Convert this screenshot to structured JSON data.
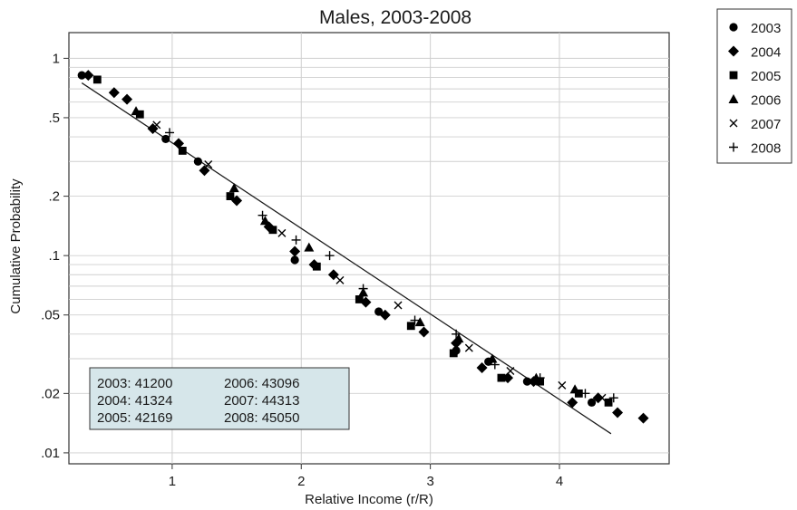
{
  "chart_data": {
    "type": "scatter",
    "title": "Males, 2003-2008",
    "xlabel": "Relative Income (r/R)",
    "ylabel": "Cumulative Probability",
    "x_scale": "linear",
    "y_scale": "log",
    "xlim": [
      0.2,
      4.85
    ],
    "ylim": [
      0.0088,
      1.35
    ],
    "x_ticks": [
      1,
      2,
      3,
      4
    ],
    "x_tick_labels": [
      "1",
      "2",
      "3",
      "4"
    ],
    "y_ticks": [
      1,
      0.5,
      0.2,
      0.1,
      0.05,
      0.02,
      0.01
    ],
    "y_tick_labels": [
      "1",
      ".5",
      ".2",
      ".1",
      ".05",
      ".02",
      ".01"
    ],
    "grid": true,
    "legend_position": "outside-right-top",
    "colors": {
      "markers": "#000000",
      "grid": "#cfcfcf",
      "note_box": "#d6e6ea",
      "fit_line": "#1a1a1a"
    },
    "fit_line": {
      "x": [
        0.3,
        4.4
      ],
      "y": [
        0.75,
        0.0125
      ]
    },
    "series": [
      {
        "name": "2003",
        "marker": "circle",
        "x": [
          0.3,
          0.95,
          1.2,
          1.95,
          2.6,
          3.2,
          3.45,
          3.75,
          4.25
        ],
        "y": [
          0.82,
          0.39,
          0.3,
          0.095,
          0.052,
          0.033,
          0.029,
          0.023,
          0.018
        ]
      },
      {
        "name": "2004",
        "marker": "diamond",
        "x": [
          0.35,
          0.55,
          0.65,
          0.85,
          1.05,
          1.25,
          1.5,
          1.75,
          1.95,
          2.1,
          2.25,
          2.5,
          2.65,
          2.95,
          3.2,
          3.4,
          3.6,
          3.8,
          4.1,
          4.3,
          4.45,
          4.65
        ],
        "y": [
          0.82,
          0.67,
          0.62,
          0.44,
          0.37,
          0.27,
          0.19,
          0.14,
          0.105,
          0.09,
          0.08,
          0.058,
          0.05,
          0.041,
          0.036,
          0.027,
          0.024,
          0.023,
          0.018,
          0.019,
          0.016,
          0.015
        ]
      },
      {
        "name": "2005",
        "marker": "square",
        "x": [
          0.42,
          0.75,
          1.08,
          1.45,
          1.78,
          2.12,
          2.45,
          2.85,
          3.18,
          3.55,
          3.85,
          4.15,
          4.38
        ],
        "y": [
          0.78,
          0.52,
          0.34,
          0.2,
          0.135,
          0.088,
          0.06,
          0.044,
          0.032,
          0.024,
          0.023,
          0.02,
          0.018
        ]
      },
      {
        "name": "2006",
        "marker": "triangle",
        "x": [
          0.72,
          1.48,
          1.72,
          2.06,
          2.48,
          2.92,
          3.22,
          3.48,
          3.82,
          4.12
        ],
        "y": [
          0.54,
          0.22,
          0.15,
          0.11,
          0.065,
          0.046,
          0.038,
          0.03,
          0.024,
          0.021
        ]
      },
      {
        "name": "2007",
        "marker": "x",
        "x": [
          0.88,
          1.28,
          1.85,
          2.3,
          2.75,
          3.3,
          3.62,
          4.02,
          4.33
        ],
        "y": [
          0.46,
          0.29,
          0.13,
          0.075,
          0.056,
          0.034,
          0.026,
          0.022,
          0.019
        ]
      },
      {
        "name": "2008",
        "marker": "plus",
        "x": [
          0.98,
          1.7,
          1.96,
          2.22,
          2.48,
          2.88,
          3.2,
          3.5,
          3.85,
          4.2,
          4.42
        ],
        "y": [
          0.42,
          0.16,
          0.12,
          0.1,
          0.068,
          0.047,
          0.04,
          0.028,
          0.024,
          0.02,
          0.019
        ]
      }
    ],
    "annotation_box": {
      "rows": [
        [
          "2003:  41200",
          "2006:  43096"
        ],
        [
          "2004:  41324",
          "2007:  44313"
        ],
        [
          "2005:  42169",
          "2008:  45050"
        ]
      ]
    }
  }
}
